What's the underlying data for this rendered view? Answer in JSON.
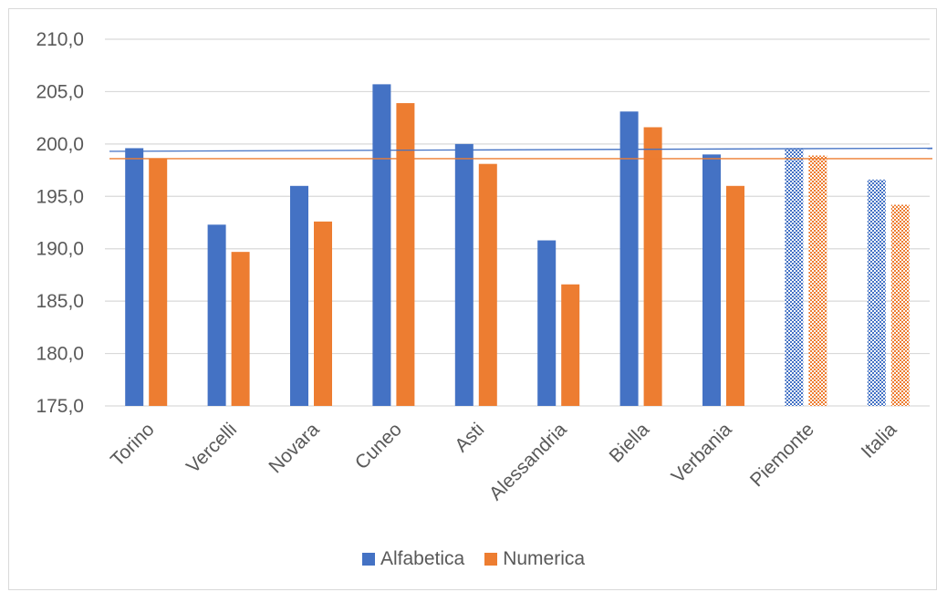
{
  "colors": {
    "alfabetica": "#4472c4",
    "numerica": "#ed7d31",
    "grid": "#d9d9d9",
    "text": "#595959"
  },
  "legend": {
    "alfabetica_label": "Alfabetica",
    "numerica_label": "Numerica",
    "position": "bottom"
  },
  "chart_data": {
    "type": "bar",
    "title": "",
    "xlabel": "",
    "ylabel": "",
    "ylim": [
      175,
      210
    ],
    "y_ticks": [
      "175,0",
      "180,0",
      "185,0",
      "190,0",
      "195,0",
      "200,0",
      "205,0",
      "210,0"
    ],
    "y_tick_values": [
      175,
      180,
      185,
      190,
      195,
      200,
      205,
      210
    ],
    "grid": true,
    "categories": [
      "Torino",
      "Vercelli",
      "Novara",
      "Cuneo",
      "Asti",
      "Alessandria",
      "Biella",
      "Verbania",
      "Piemonte",
      "Italia"
    ],
    "patterned_categories": [
      "Piemonte",
      "Italia"
    ],
    "series": [
      {
        "name": "Alfabetica",
        "values": [
          199.6,
          192.3,
          196.0,
          205.7,
          200.0,
          190.8,
          203.1,
          199.0,
          199.6,
          196.6
        ]
      },
      {
        "name": "Numerica",
        "values": [
          198.6,
          189.7,
          192.6,
          203.9,
          198.1,
          186.6,
          201.6,
          196.0,
          198.9,
          194.2
        ]
      }
    ],
    "reference_lines": [
      {
        "series": "Alfabetica",
        "from": 199.3,
        "to": 199.6
      },
      {
        "series": "Numerica",
        "value": 198.6
      }
    ]
  }
}
